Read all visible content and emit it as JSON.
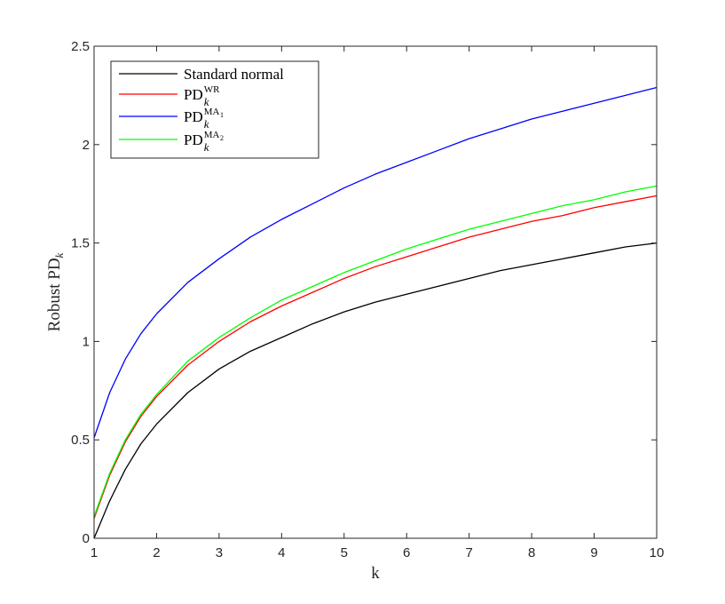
{
  "chart_data": {
    "type": "line",
    "xlabel": "k",
    "ylabel": {
      "main": "Robust PD",
      "sub": "k"
    },
    "xlim": [
      1,
      10
    ],
    "ylim": [
      0,
      2.5
    ],
    "xticks": [
      1,
      2,
      3,
      4,
      5,
      6,
      7,
      8,
      9,
      10
    ],
    "yticks": [
      0,
      0.5,
      1,
      1.5,
      2,
      2.5
    ],
    "ytick_labels": [
      "0",
      "0.5",
      "1",
      "1.5",
      "2",
      "2.5"
    ],
    "grid": false,
    "legend_position": "top-left",
    "x": [
      1,
      1.25,
      1.5,
      1.75,
      2,
      2.5,
      3,
      3.5,
      4,
      4.5,
      5,
      5.5,
      6,
      6.5,
      7,
      7.5,
      8,
      8.5,
      9,
      9.5,
      10
    ],
    "series": [
      {
        "name": "Standard normal",
        "legend": {
          "main": "Standard normal",
          "sup": "",
          "sub": "",
          "sup_sub": ""
        },
        "color": "#000000",
        "values": [
          0.0,
          0.19,
          0.35,
          0.48,
          0.58,
          0.74,
          0.86,
          0.95,
          1.02,
          1.09,
          1.15,
          1.2,
          1.24,
          1.28,
          1.32,
          1.36,
          1.39,
          1.42,
          1.45,
          1.48,
          1.5
        ]
      },
      {
        "name": "PD_k^WR",
        "legend": {
          "main": "PD",
          "sup": "WR",
          "sub": "k",
          "sup_sub": ""
        },
        "color": "#ff0000",
        "values": [
          0.1,
          0.32,
          0.49,
          0.62,
          0.72,
          0.88,
          1.0,
          1.1,
          1.18,
          1.25,
          1.32,
          1.38,
          1.43,
          1.48,
          1.53,
          1.57,
          1.61,
          1.64,
          1.68,
          1.71,
          1.74
        ]
      },
      {
        "name": "PD_k^MA1",
        "legend": {
          "main": "PD",
          "sup": "MA",
          "sub": "k",
          "sup_sub": "1"
        },
        "color": "#0000ff",
        "values": [
          0.51,
          0.74,
          0.91,
          1.04,
          1.14,
          1.3,
          1.42,
          1.53,
          1.62,
          1.7,
          1.78,
          1.85,
          1.91,
          1.97,
          2.03,
          2.08,
          2.13,
          2.17,
          2.21,
          2.25,
          2.29
        ]
      },
      {
        "name": "PD_k^MA2",
        "legend": {
          "main": "PD",
          "sup": "MA",
          "sub": "k",
          "sup_sub": "2"
        },
        "color": "#00ff00",
        "values": [
          0.11,
          0.33,
          0.5,
          0.63,
          0.73,
          0.9,
          1.02,
          1.12,
          1.21,
          1.28,
          1.35,
          1.41,
          1.47,
          1.52,
          1.57,
          1.61,
          1.65,
          1.69,
          1.72,
          1.76,
          1.79
        ]
      }
    ]
  }
}
